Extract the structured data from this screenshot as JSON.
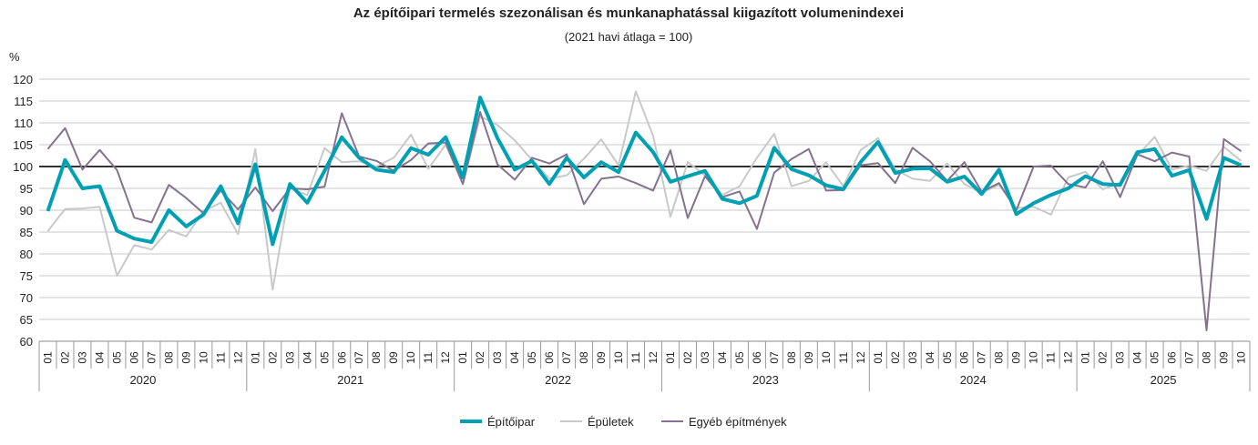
{
  "chart_data": {
    "type": "line",
    "title": "Az építőipari termelés szezonálisan és munkanaphatással kiigazított volumenindexei",
    "subtitle": "(2021 havi átlaga = 100)",
    "ylabel": "%",
    "ylim": [
      60,
      120
    ],
    "yticks": [
      60,
      65,
      70,
      75,
      80,
      85,
      90,
      95,
      100,
      105,
      110,
      115,
      120
    ],
    "reference_line": 100,
    "years": [
      "2020",
      "2021",
      "2022",
      "2023",
      "2024",
      "2025"
    ],
    "months": [
      "01",
      "02",
      "03",
      "04",
      "05",
      "06",
      "07",
      "08",
      "09",
      "10",
      "11",
      "12"
    ],
    "last_year_months": 10,
    "legend_position": "bottom",
    "series": [
      {
        "name": "Építőipar",
        "color": "#00a0b4",
        "width": 4,
        "values": [
          89.8,
          101.5,
          95,
          95.5,
          85.3,
          83.5,
          82.7,
          90,
          86.3,
          89,
          95.5,
          87,
          100.5,
          82.2,
          96,
          91.7,
          99,
          106.7,
          102,
          99.3,
          98.7,
          104.2,
          102.7,
          106.7,
          97.5,
          115.8,
          106.5,
          99.3,
          101.3,
          96,
          102,
          97.5,
          101,
          98.7,
          107.8,
          103.3,
          96.5,
          97.8,
          99,
          92.6,
          91.6,
          93.3,
          104.3,
          99.4,
          98,
          95.7,
          94.8,
          101,
          105.6,
          98.5,
          99.5,
          99.6,
          96.5,
          97.7,
          93.7,
          99.3,
          89.1,
          91.6,
          93.5,
          95,
          97.8,
          96,
          95.8,
          103.3,
          104,
          97.9,
          99.2,
          88,
          102,
          100.3
        ]
      },
      {
        "name": "Épületek",
        "color": "#c8c9cb",
        "width": 2,
        "values": [
          85.2,
          90.3,
          90.4,
          90.8,
          75,
          82,
          81,
          85.5,
          84,
          89.8,
          91.7,
          84.5,
          104,
          71.8,
          95,
          93.5,
          104.2,
          101,
          101.2,
          100,
          102,
          107.3,
          99.5,
          105,
          96,
          111.5,
          109.5,
          106,
          101.5,
          97.2,
          98,
          101.8,
          106.2,
          100.3,
          117.2,
          107,
          88.5,
          101,
          98,
          93.5,
          95.5,
          102,
          107.5,
          95.5,
          96.7,
          101,
          95.5,
          103.8,
          106.5,
          99.3,
          97.2,
          96.7,
          100.7,
          96,
          94,
          95.8,
          90.5,
          90.8,
          89,
          97.5,
          98.8,
          94.8,
          96.3,
          102.5,
          106.8,
          99.3,
          100.2,
          99,
          104.5,
          101.3
        ]
      },
      {
        "name": "Egyéb építmények",
        "color": "#85728f",
        "width": 2,
        "values": [
          104,
          108.8,
          99.3,
          103.8,
          99.2,
          88.3,
          87.2,
          95.8,
          92.8,
          89.3,
          94.5,
          90.2,
          95.2,
          89.8,
          95,
          94.8,
          95.4,
          112.2,
          102.3,
          101.3,
          99,
          101.5,
          105.3,
          105.5,
          96,
          112.5,
          100.5,
          97,
          102,
          100.7,
          102.8,
          91.4,
          97.2,
          97.7,
          96.2,
          94.5,
          103.7,
          88.2,
          97.8,
          93,
          94.3,
          85.7,
          98.6,
          101.7,
          104,
          94.5,
          94.6,
          100.3,
          100.8,
          96.2,
          104.3,
          101.2,
          96.7,
          101,
          94.2,
          96.2,
          90,
          100,
          100.2,
          96,
          95.2,
          101.2,
          93,
          102.8,
          101.2,
          103.2,
          102.3,
          62.5,
          106.3,
          103.5
        ]
      }
    ]
  }
}
